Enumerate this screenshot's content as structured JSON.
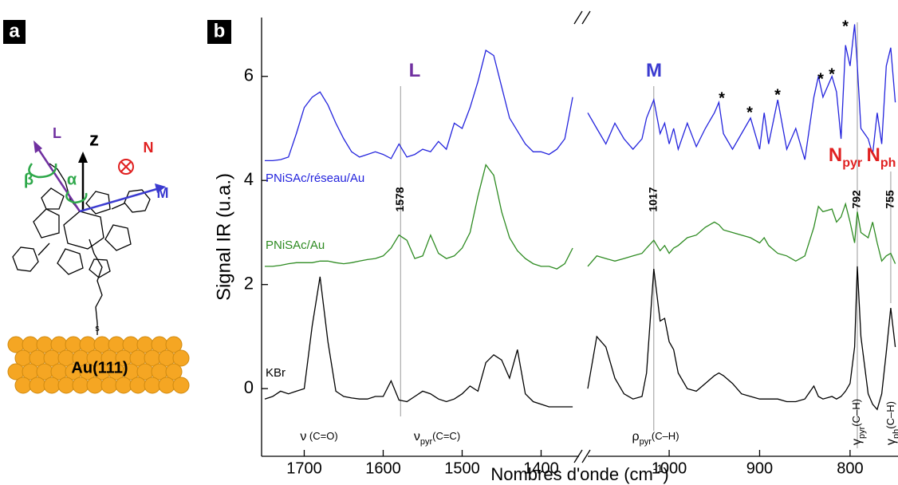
{
  "panel_labels": [
    "a",
    "b"
  ],
  "diagram": {
    "labels": {
      "L": "L",
      "z": "z",
      "N": "N",
      "M": "M",
      "beta": "β",
      "alpha": "α",
      "sulfur": "s",
      "surface": "Au(111)"
    }
  },
  "chart_data": {
    "type": "line",
    "ylabel": "Signal IR (u.a.)",
    "xlabel": {
      "main": "Nombres d'onde (cm",
      "sup": "-1",
      "tail": ")"
    },
    "ylim": [
      -1.3,
      7.13
    ],
    "yticks": [
      0,
      2,
      4,
      6
    ],
    "segments": [
      {
        "xlim": [
          1754,
          1350
        ],
        "xticks": [
          1700,
          1600,
          1500,
          1400
        ],
        "x": [
          1750,
          1740,
          1730,
          1720,
          1710,
          1700,
          1690,
          1680,
          1670,
          1660,
          1650,
          1640,
          1630,
          1620,
          1610,
          1600,
          1590,
          1580,
          1570,
          1560,
          1550,
          1540,
          1530,
          1520,
          1510,
          1500,
          1490,
          1480,
          1470,
          1460,
          1450,
          1440,
          1430,
          1420,
          1410,
          1400,
          1390,
          1380,
          1370,
          1360
        ]
      },
      {
        "xlim": [
          1090,
          747
        ],
        "xticks": [
          1000,
          900,
          800
        ],
        "x": [
          1090,
          1080,
          1070,
          1060,
          1050,
          1040,
          1030,
          1025,
          1017,
          1010,
          1005,
          1000,
          995,
          990,
          980,
          970,
          960,
          950,
          945,
          940,
          930,
          920,
          910,
          900,
          895,
          890,
          880,
          870,
          860,
          850,
          840,
          835,
          830,
          820,
          815,
          810,
          805,
          800,
          795,
          792,
          788,
          780,
          775,
          770,
          765,
          760,
          755,
          750
        ]
      }
    ],
    "series": [
      {
        "name": "PNiSAc/réseau/Au",
        "color": "#2424dd",
        "values": [
          [
            4.38,
            4.38,
            4.4,
            4.45,
            4.9,
            5.4,
            5.6,
            5.7,
            5.45,
            5.1,
            4.8,
            4.55,
            4.45,
            4.5,
            4.55,
            4.5,
            4.42,
            4.7,
            4.45,
            4.5,
            4.6,
            4.55,
            4.75,
            4.6,
            5.1,
            5.0,
            5.4,
            5.9,
            6.5,
            6.4,
            5.8,
            5.2,
            4.95,
            4.7,
            4.55,
            4.55,
            4.5,
            4.6,
            4.8,
            5.6
          ],
          [
            5.3,
            5.0,
            4.7,
            5.1,
            4.8,
            4.6,
            4.8,
            5.2,
            5.55,
            4.9,
            5.1,
            4.7,
            5.0,
            4.6,
            5.1,
            4.65,
            5.0,
            5.3,
            5.5,
            4.9,
            4.6,
            4.9,
            5.2,
            4.6,
            5.3,
            4.7,
            5.55,
            4.6,
            5.0,
            4.4,
            5.6,
            6.0,
            5.6,
            6.0,
            5.7,
            4.8,
            6.6,
            6.2,
            7.0,
            6.2,
            5.0,
            4.8,
            4.5,
            5.3,
            4.7,
            6.2,
            6.55,
            5.5
          ]
        ]
      },
      {
        "name": "PNiSAc/Au",
        "color": "#2e8b22",
        "values": [
          [
            2.35,
            2.35,
            2.37,
            2.4,
            2.42,
            2.42,
            2.42,
            2.45,
            2.45,
            2.42,
            2.4,
            2.42,
            2.45,
            2.48,
            2.5,
            2.55,
            2.7,
            2.95,
            2.85,
            2.5,
            2.55,
            2.95,
            2.6,
            2.5,
            2.55,
            2.7,
            3.0,
            3.7,
            4.3,
            4.1,
            3.4,
            2.9,
            2.65,
            2.5,
            2.4,
            2.35,
            2.35,
            2.3,
            2.4,
            2.7
          ],
          [
            2.35,
            2.55,
            2.5,
            2.45,
            2.5,
            2.55,
            2.6,
            2.7,
            2.85,
            2.65,
            2.75,
            2.6,
            2.7,
            2.75,
            2.9,
            2.95,
            3.1,
            3.2,
            3.15,
            3.05,
            3.0,
            2.95,
            2.9,
            2.8,
            2.9,
            2.75,
            2.6,
            2.55,
            2.45,
            2.55,
            3.1,
            3.5,
            3.4,
            3.45,
            3.2,
            3.3,
            3.55,
            3.2,
            2.8,
            3.4,
            3.0,
            2.9,
            3.2,
            2.8,
            2.45,
            2.55,
            2.6,
            2.4
          ]
        ]
      },
      {
        "name": "KBr",
        "color": "#000000",
        "values": [
          [
            -0.2,
            -0.15,
            -0.05,
            -0.1,
            -0.05,
            0.0,
            1.2,
            2.15,
            0.9,
            -0.05,
            -0.15,
            -0.18,
            -0.2,
            -0.2,
            -0.15,
            -0.15,
            0.15,
            -0.22,
            -0.25,
            -0.15,
            -0.05,
            -0.1,
            -0.2,
            -0.25,
            -0.2,
            -0.1,
            0.05,
            -0.05,
            0.5,
            0.65,
            0.55,
            0.2,
            0.75,
            -0.1,
            -0.25,
            -0.3,
            -0.35,
            -0.35,
            -0.35,
            -0.35
          ],
          [
            0.0,
            1.0,
            0.8,
            0.2,
            -0.1,
            -0.2,
            -0.15,
            0.3,
            2.3,
            1.3,
            1.35,
            0.9,
            0.75,
            0.3,
            0.0,
            -0.05,
            0.1,
            0.25,
            0.3,
            0.25,
            0.1,
            -0.1,
            -0.15,
            -0.2,
            -0.2,
            -0.2,
            -0.2,
            -0.25,
            -0.25,
            -0.2,
            0.05,
            -0.15,
            -0.2,
            -0.15,
            -0.2,
            -0.15,
            -0.05,
            0.1,
            0.8,
            2.35,
            1.0,
            -0.1,
            -0.3,
            -0.4,
            -0.1,
            0.7,
            1.55,
            0.8
          ]
        ]
      }
    ],
    "reference_lines": [
      1578,
      1017,
      792,
      755
    ],
    "peak_labels": [
      {
        "main": "L"
      },
      {
        "main": "M"
      },
      {
        "main": "N",
        "sub": "pyr"
      },
      {
        "main": "N",
        "sub": "ph"
      }
    ],
    "band_labels": [
      {
        "main": "ν",
        "tail": " (C=O)"
      },
      {
        "main": "ν",
        "sub": "pyr",
        "tail": "(C=C)"
      },
      {
        "main": "ρ",
        "sub": "pyr",
        "tail": "(C–H)"
      },
      {
        "main": "γ",
        "sub": "pyr",
        "tail": "(C–H)"
      },
      {
        "main": "γ",
        "sub": "ph",
        "tail": "(C–H)"
      }
    ],
    "asterisks": [
      "*",
      "*",
      "*",
      "*",
      "*",
      "*"
    ]
  }
}
